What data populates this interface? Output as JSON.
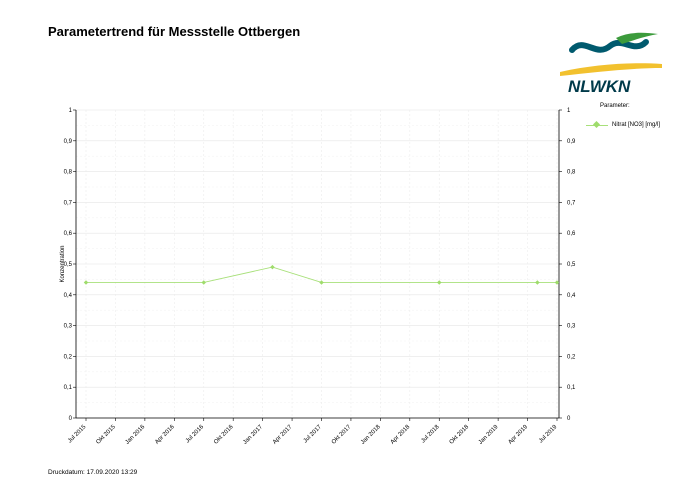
{
  "header": {
    "title": "Parametertrend für Messstelle Ottbergen"
  },
  "logo": {
    "text": "NLWKN",
    "colors": {
      "teal": "#005a6e",
      "green": "#3c9b3c",
      "yellow": "#f2c12e",
      "dark": "#003a4a"
    }
  },
  "legend": {
    "title": "Parameter:",
    "item": "Nitrat [NO3] [mg/l]"
  },
  "footer": {
    "print_date": "Druckdatum: 17.09.2020 13:29"
  },
  "chart_data": {
    "type": "line",
    "title": "",
    "xlabel": "",
    "ylabel": "Konzentration",
    "ylim": [
      0,
      1
    ],
    "yticks": [
      "0",
      "0,1",
      "0,2",
      "0,3",
      "0,4",
      "0,5",
      "0,6",
      "0,7",
      "0,8",
      "0,9",
      "1"
    ],
    "x_tick_labels": [
      "Jul 2015",
      "Okt 2015",
      "Jan 2016",
      "Apr 2016",
      "Jul 2016",
      "Okt 2016",
      "Jan 2017",
      "Apr 2017",
      "Jul 2017",
      "Okt 2017",
      "Jan 2018",
      "Apr 2018",
      "Jul 2018",
      "Okt 2018",
      "Jan 2019",
      "Apr 2019",
      "Jul 2019"
    ],
    "grid": true,
    "series": [
      {
        "name": "Nitrat [NO3] [mg/l]",
        "color": "#a8e07a",
        "x": [
          "2015-07",
          "2016-07",
          "2017-02",
          "2017-07",
          "2018-07",
          "2019-05",
          "2019-07"
        ],
        "values": [
          0.44,
          0.44,
          0.49,
          0.44,
          0.44,
          0.44,
          0.44
        ]
      }
    ]
  }
}
